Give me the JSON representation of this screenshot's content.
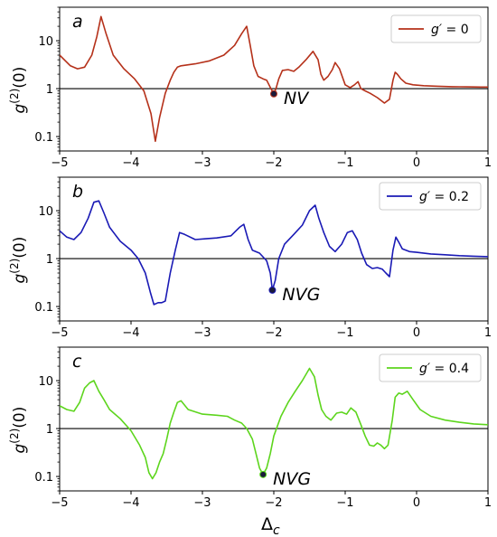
{
  "chart_data": [
    {
      "type": "line",
      "panel_label": "a",
      "ylabel": "g(2)(0)",
      "xlabel": "",
      "xlim": [
        -5,
        1
      ],
      "ylim": [
        0.05,
        50
      ],
      "yscale": "log",
      "x_ticks": [
        "−5",
        "−4",
        "−3",
        "−2",
        "−1",
        "0",
        "1"
      ],
      "y_ticks": [
        "0.1",
        "1",
        "10"
      ],
      "reference_line_y": 1,
      "legend": {
        "label": "g′ = 0",
        "position": "top-right"
      },
      "color": "#b5311a",
      "marker": {
        "x": -2.0,
        "y": 0.78,
        "label": "NV"
      },
      "series": [
        {
          "x": [
            -5.0,
            -4.85,
            -4.75,
            -4.65,
            -4.55,
            -4.48,
            -4.42,
            -4.35,
            -4.25,
            -4.1,
            -3.95,
            -3.82,
            -3.72,
            -3.66,
            -3.6,
            -3.52,
            -3.45,
            -3.4,
            -3.35,
            -3.3,
            -3.1,
            -2.9,
            -2.7,
            -2.55,
            -2.45,
            -2.38,
            -2.33,
            -2.28,
            -2.22,
            -2.15,
            -2.1,
            -2.04,
            -2.0,
            -1.97,
            -1.93,
            -1.88,
            -1.8,
            -1.72,
            -1.65,
            -1.55,
            -1.45,
            -1.38,
            -1.34,
            -1.3,
            -1.24,
            -1.18,
            -1.14,
            -1.08,
            -1.0,
            -0.93,
            -0.87,
            -0.82,
            -0.78,
            -0.72,
            -0.65,
            -0.55,
            -0.45,
            -0.38,
            -0.33,
            -0.3,
            -0.27,
            -0.22,
            -0.15,
            -0.05,
            0.1,
            0.3,
            0.5,
            0.7,
            0.9,
            1.0
          ],
          "y": [
            5.0,
            3.0,
            2.6,
            2.8,
            5.0,
            12.0,
            32.0,
            14.0,
            5.0,
            2.6,
            1.6,
            0.9,
            0.3,
            0.08,
            0.25,
            0.8,
            1.5,
            2.2,
            2.8,
            3.0,
            3.3,
            3.8,
            5.0,
            8.0,
            14.0,
            20.0,
            8.0,
            3.0,
            1.8,
            1.6,
            1.5,
            1.0,
            0.78,
            1.0,
            1.6,
            2.4,
            2.5,
            2.3,
            2.8,
            4.0,
            6.0,
            4.0,
            2.0,
            1.5,
            1.8,
            2.5,
            3.5,
            2.6,
            1.2,
            1.05,
            1.2,
            1.4,
            1.0,
            0.9,
            0.8,
            0.65,
            0.5,
            0.6,
            1.5,
            2.2,
            2.0,
            1.6,
            1.3,
            1.2,
            1.15,
            1.12,
            1.1,
            1.09,
            1.08,
            1.08
          ]
        }
      ]
    },
    {
      "type": "line",
      "panel_label": "b",
      "ylabel": "g(2)(0)",
      "xlabel": "",
      "xlim": [
        -5,
        1
      ],
      "ylim": [
        0.05,
        50
      ],
      "yscale": "log",
      "x_ticks": [
        "−5",
        "−4",
        "−3",
        "−2",
        "−1",
        "0",
        "1"
      ],
      "y_ticks": [
        "0.1",
        "1",
        "10"
      ],
      "reference_line_y": 1,
      "legend": {
        "label": "g′ = 0.2",
        "position": "top-right"
      },
      "color": "#1a1ab5",
      "marker": {
        "x": -2.02,
        "y": 0.22,
        "label": "NVG"
      },
      "series": [
        {
          "x": [
            -5.0,
            -4.9,
            -4.8,
            -4.7,
            -4.6,
            -4.52,
            -4.45,
            -4.38,
            -4.3,
            -4.15,
            -4.0,
            -3.9,
            -3.8,
            -3.73,
            -3.68,
            -3.62,
            -3.57,
            -3.52,
            -3.45,
            -3.38,
            -3.32,
            -3.25,
            -3.1,
            -2.95,
            -2.8,
            -2.6,
            -2.48,
            -2.42,
            -2.36,
            -2.3,
            -2.2,
            -2.1,
            -2.05,
            -2.02,
            -1.98,
            -1.93,
            -1.85,
            -1.72,
            -1.6,
            -1.5,
            -1.42,
            -1.37,
            -1.3,
            -1.22,
            -1.14,
            -1.05,
            -0.97,
            -0.9,
            -0.83,
            -0.77,
            -0.7,
            -0.62,
            -0.55,
            -0.48,
            -0.43,
            -0.38,
            -0.33,
            -0.29,
            -0.25,
            -0.2,
            -0.1,
            0.0,
            0.2,
            0.4,
            0.6,
            0.8,
            1.0
          ],
          "y": [
            3.8,
            2.8,
            2.5,
            3.5,
            7.0,
            15.0,
            16.0,
            9.0,
            4.5,
            2.3,
            1.5,
            1.0,
            0.5,
            0.2,
            0.11,
            0.12,
            0.12,
            0.13,
            0.5,
            1.5,
            3.5,
            3.2,
            2.5,
            2.6,
            2.7,
            3.0,
            4.5,
            5.2,
            2.5,
            1.5,
            1.3,
            0.9,
            0.5,
            0.22,
            0.35,
            1.0,
            2.0,
            3.2,
            5.0,
            10.0,
            13.0,
            7.0,
            3.5,
            1.8,
            1.4,
            2.0,
            3.5,
            3.8,
            2.5,
            1.3,
            0.75,
            0.62,
            0.65,
            0.6,
            0.5,
            0.42,
            1.5,
            2.8,
            2.2,
            1.6,
            1.4,
            1.35,
            1.25,
            1.2,
            1.15,
            1.12,
            1.1
          ]
        }
      ]
    },
    {
      "type": "line",
      "panel_label": "c",
      "ylabel": "g(2)(0)",
      "xlabel": "Δc",
      "xlim": [
        -5,
        1
      ],
      "ylim": [
        0.05,
        50
      ],
      "yscale": "log",
      "x_ticks": [
        "−5",
        "−4",
        "−3",
        "−2",
        "−1",
        "0",
        "1"
      ],
      "y_ticks": [
        "0.1",
        "1",
        "10"
      ],
      "reference_line_y": 1,
      "legend": {
        "label": "g′ = 0.4",
        "position": "top-right"
      },
      "color": "#5dd51d",
      "marker": {
        "x": -2.15,
        "y": 0.11,
        "label": "NVG"
      },
      "series": [
        {
          "x": [
            -5.0,
            -4.9,
            -4.8,
            -4.72,
            -4.65,
            -4.58,
            -4.52,
            -4.45,
            -4.38,
            -4.3,
            -4.15,
            -4.0,
            -3.88,
            -3.8,
            -3.75,
            -3.7,
            -3.65,
            -3.6,
            -3.55,
            -3.5,
            -3.45,
            -3.4,
            -3.35,
            -3.3,
            -3.2,
            -3.0,
            -2.8,
            -2.65,
            -2.55,
            -2.45,
            -2.38,
            -2.3,
            -2.25,
            -2.2,
            -2.15,
            -2.1,
            -2.05,
            -2.0,
            -1.9,
            -1.8,
            -1.7,
            -1.6,
            -1.5,
            -1.43,
            -1.38,
            -1.33,
            -1.27,
            -1.2,
            -1.12,
            -1.05,
            -0.98,
            -0.92,
            -0.85,
            -0.78,
            -0.72,
            -0.66,
            -0.6,
            -0.55,
            -0.5,
            -0.45,
            -0.4,
            -0.34,
            -0.3,
            -0.25,
            -0.2,
            -0.13,
            -0.05,
            0.05,
            0.2,
            0.4,
            0.6,
            0.8,
            1.0
          ],
          "y": [
            3.0,
            2.5,
            2.3,
            3.5,
            7.0,
            9.0,
            10.0,
            6.0,
            4.0,
            2.5,
            1.6,
            0.9,
            0.45,
            0.25,
            0.12,
            0.09,
            0.12,
            0.2,
            0.3,
            0.6,
            1.3,
            2.2,
            3.5,
            3.8,
            2.5,
            2.0,
            1.9,
            1.8,
            1.5,
            1.3,
            1.0,
            0.6,
            0.3,
            0.15,
            0.11,
            0.15,
            0.3,
            0.7,
            1.8,
            3.5,
            6.0,
            10.0,
            18.0,
            12.0,
            5.0,
            2.5,
            1.8,
            1.5,
            2.1,
            2.2,
            2.0,
            2.7,
            2.2,
            1.2,
            0.7,
            0.45,
            0.43,
            0.5,
            0.45,
            0.38,
            0.45,
            1.5,
            4.5,
            5.5,
            5.2,
            6.0,
            4.0,
            2.5,
            1.8,
            1.5,
            1.35,
            1.25,
            1.2
          ]
        }
      ]
    }
  ]
}
